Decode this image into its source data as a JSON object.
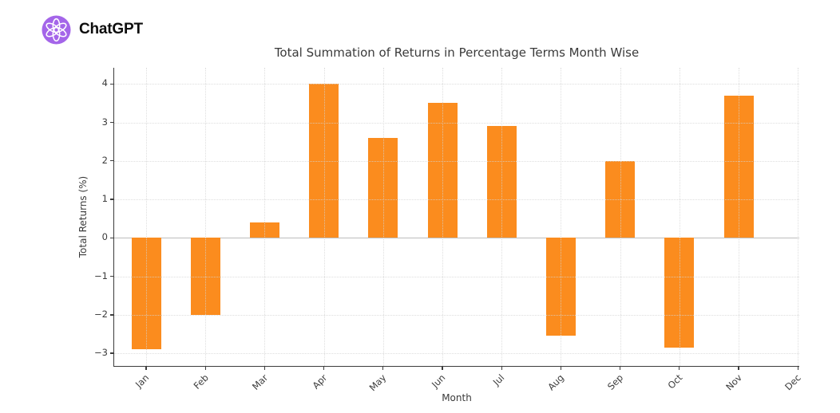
{
  "header": {
    "brand": "ChatGPT",
    "logo_icon": "openai-flower-icon",
    "logo_bg_color": "#a465e9",
    "logo_glyph_color": "#ffffff"
  },
  "chart_data": {
    "type": "bar",
    "title": "Total Summation of Returns in Percentage Terms Month Wise",
    "xlabel": "Month",
    "ylabel": "Total Returns (%)",
    "categories": [
      "Jan",
      "Feb",
      "Mar",
      "Apr",
      "May",
      "Jun",
      "Jul",
      "Aug",
      "Sep",
      "Oct",
      "Nov",
      "Dec"
    ],
    "values": [
      -2.9,
      -2.0,
      0.4,
      4.0,
      2.6,
      3.5,
      2.9,
      -2.55,
      2.0,
      -2.85,
      3.7,
      0.0
    ],
    "bar_color": "#fb8c1e",
    "yticks": [
      4,
      3,
      2,
      1,
      0,
      -1,
      -2,
      -3
    ],
    "ytick_labels": [
      "4",
      "3",
      "2",
      "1",
      "0",
      "−1",
      "−2",
      "−3"
    ],
    "ylim": [
      -3.33,
      4.42
    ],
    "grid": true,
    "grid_style": "dotted",
    "zero_line": true,
    "tick_label_rotation": 45,
    "legend": null,
    "background_color": "#ffffff"
  }
}
